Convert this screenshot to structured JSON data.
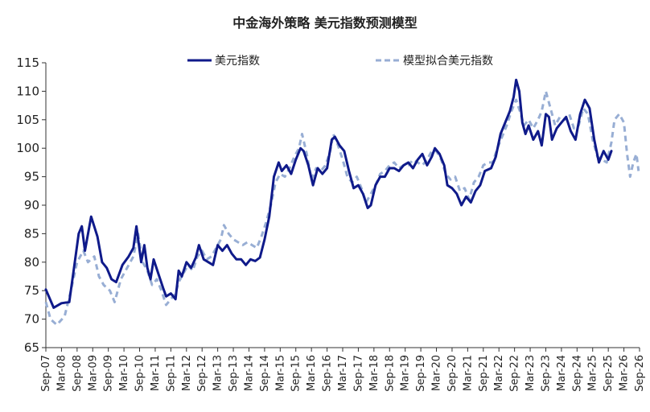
{
  "chart_data": {
    "type": "line",
    "title": "中金海外策略 美元指数预测模型",
    "xlabel": "",
    "ylabel": "",
    "ylim": [
      65,
      115
    ],
    "yticks": [
      65,
      70,
      75,
      80,
      85,
      90,
      95,
      100,
      105,
      110,
      115
    ],
    "legend_position": "top-center",
    "x_ticks": [
      "Sep-07",
      "Mar-08",
      "Sep-08",
      "Mar-09",
      "Sep-09",
      "Mar-10",
      "Sep-10",
      "Mar-11",
      "Sep-11",
      "Mar-12",
      "Sep-12",
      "Mar-13",
      "Sep-13",
      "Mar-14",
      "Sep-14",
      "Mar-15",
      "Sep-15",
      "Mar-16",
      "Sep-16",
      "Mar-17",
      "Sep-17",
      "Mar-18",
      "Sep-18",
      "Mar-19",
      "Sep-19",
      "Mar-20",
      "Sep-20",
      "Mar-21",
      "Sep-21",
      "Mar-22",
      "Sep-22",
      "Mar-23",
      "Sep-23",
      "Mar-24",
      "Sep-24",
      "Mar-25",
      "Sep-25",
      "Mar-26",
      "Sep-26"
    ],
    "series": [
      {
        "name": "美元指数",
        "color": "#0f1a8a",
        "style": "solid",
        "points": [
          [
            2007.75,
            75.2
          ],
          [
            2008.0,
            72.0
          ],
          [
            2008.25,
            72.8
          ],
          [
            2008.5,
            73.0
          ],
          [
            2008.65,
            79.0
          ],
          [
            2008.8,
            85.0
          ],
          [
            2008.9,
            86.3
          ],
          [
            2009.0,
            82.0
          ],
          [
            2009.2,
            88.0
          ],
          [
            2009.4,
            84.5
          ],
          [
            2009.55,
            80.0
          ],
          [
            2009.7,
            79.0
          ],
          [
            2009.85,
            77.0
          ],
          [
            2010.0,
            76.5
          ],
          [
            2010.2,
            79.5
          ],
          [
            2010.4,
            81.0
          ],
          [
            2010.55,
            82.5
          ],
          [
            2010.65,
            86.3
          ],
          [
            2010.8,
            80.0
          ],
          [
            2010.9,
            83.0
          ],
          [
            2011.0,
            79.0
          ],
          [
            2011.1,
            77.0
          ],
          [
            2011.2,
            80.5
          ],
          [
            2011.35,
            78.0
          ],
          [
            2011.5,
            75.5
          ],
          [
            2011.6,
            74.0
          ],
          [
            2011.75,
            74.5
          ],
          [
            2011.9,
            73.5
          ],
          [
            2012.0,
            78.5
          ],
          [
            2012.1,
            77.5
          ],
          [
            2012.25,
            80.0
          ],
          [
            2012.4,
            79.0
          ],
          [
            2012.55,
            80.8
          ],
          [
            2012.65,
            83.0
          ],
          [
            2012.8,
            80.5
          ],
          [
            2012.95,
            80.0
          ],
          [
            2013.1,
            79.5
          ],
          [
            2013.25,
            83.0
          ],
          [
            2013.4,
            82.0
          ],
          [
            2013.55,
            83.0
          ],
          [
            2013.7,
            81.5
          ],
          [
            2013.85,
            80.5
          ],
          [
            2014.0,
            80.5
          ],
          [
            2014.15,
            79.5
          ],
          [
            2014.3,
            80.5
          ],
          [
            2014.45,
            80.2
          ],
          [
            2014.6,
            80.8
          ],
          [
            2014.75,
            84.0
          ],
          [
            2014.9,
            88.0
          ],
          [
            2015.05,
            95.0
          ],
          [
            2015.2,
            97.5
          ],
          [
            2015.3,
            96.0
          ],
          [
            2015.45,
            97.0
          ],
          [
            2015.6,
            95.5
          ],
          [
            2015.75,
            98.0
          ],
          [
            2015.9,
            100.0
          ],
          [
            2016.0,
            99.5
          ],
          [
            2016.15,
            97.0
          ],
          [
            2016.3,
            93.5
          ],
          [
            2016.45,
            96.5
          ],
          [
            2016.6,
            95.5
          ],
          [
            2016.75,
            96.5
          ],
          [
            2016.9,
            101.5
          ],
          [
            2017.0,
            102.0
          ],
          [
            2017.15,
            100.5
          ],
          [
            2017.3,
            99.5
          ],
          [
            2017.45,
            96.0
          ],
          [
            2017.6,
            93.0
          ],
          [
            2017.75,
            93.5
          ],
          [
            2017.9,
            92.0
          ],
          [
            2018.05,
            89.5
          ],
          [
            2018.15,
            90.0
          ],
          [
            2018.3,
            93.5
          ],
          [
            2018.45,
            95.0
          ],
          [
            2018.6,
            95.0
          ],
          [
            2018.75,
            96.5
          ],
          [
            2018.9,
            96.5
          ],
          [
            2019.05,
            96.0
          ],
          [
            2019.2,
            97.0
          ],
          [
            2019.35,
            97.5
          ],
          [
            2019.5,
            96.5
          ],
          [
            2019.65,
            98.0
          ],
          [
            2019.8,
            99.0
          ],
          [
            2019.95,
            97.0
          ],
          [
            2020.1,
            98.5
          ],
          [
            2020.2,
            100.0
          ],
          [
            2020.35,
            99.0
          ],
          [
            2020.5,
            97.0
          ],
          [
            2020.6,
            93.5
          ],
          [
            2020.75,
            93.0
          ],
          [
            2020.9,
            92.0
          ],
          [
            2021.05,
            90.0
          ],
          [
            2021.2,
            91.5
          ],
          [
            2021.35,
            90.5
          ],
          [
            2021.5,
            92.5
          ],
          [
            2021.65,
            93.5
          ],
          [
            2021.8,
            96.0
          ],
          [
            2022.0,
            96.5
          ],
          [
            2022.15,
            98.5
          ],
          [
            2022.3,
            102.5
          ],
          [
            2022.45,
            104.5
          ],
          [
            2022.6,
            106.5
          ],
          [
            2022.72,
            109.0
          ],
          [
            2022.8,
            112.0
          ],
          [
            2022.9,
            110.0
          ],
          [
            2023.0,
            104.5
          ],
          [
            2023.1,
            102.5
          ],
          [
            2023.2,
            104.0
          ],
          [
            2023.35,
            101.5
          ],
          [
            2023.5,
            103.0
          ],
          [
            2023.62,
            100.5
          ],
          [
            2023.75,
            106.0
          ],
          [
            2023.85,
            105.5
          ],
          [
            2023.95,
            101.5
          ],
          [
            2024.1,
            103.5
          ],
          [
            2024.25,
            104.5
          ],
          [
            2024.4,
            105.5
          ],
          [
            2024.55,
            103.0
          ],
          [
            2024.7,
            101.5
          ],
          [
            2024.85,
            106.0
          ],
          [
            2025.0,
            108.5
          ],
          [
            2025.15,
            107.0
          ],
          [
            2025.3,
            101.5
          ],
          [
            2025.45,
            97.5
          ],
          [
            2025.6,
            99.5
          ],
          [
            2025.75,
            98.0
          ],
          [
            2025.85,
            99.5
          ]
        ]
      },
      {
        "name": "模型拟合美元指数",
        "color": "#98aed4",
        "style": "dashed",
        "points": [
          [
            2007.75,
            73.0
          ],
          [
            2007.9,
            70.0
          ],
          [
            2008.1,
            69.0
          ],
          [
            2008.35,
            70.5
          ],
          [
            2008.55,
            75.0
          ],
          [
            2008.75,
            80.0
          ],
          [
            2008.95,
            82.0
          ],
          [
            2009.1,
            80.0
          ],
          [
            2009.3,
            81.0
          ],
          [
            2009.45,
            77.5
          ],
          [
            2009.6,
            76.0
          ],
          [
            2009.8,
            75.0
          ],
          [
            2009.95,
            73.0
          ],
          [
            2010.15,
            77.0
          ],
          [
            2010.35,
            79.0
          ],
          [
            2010.55,
            81.0
          ],
          [
            2010.7,
            85.0
          ],
          [
            2010.85,
            80.0
          ],
          [
            2011.0,
            78.5
          ],
          [
            2011.15,
            76.0
          ],
          [
            2011.3,
            77.0
          ],
          [
            2011.45,
            75.0
          ],
          [
            2011.6,
            72.5
          ],
          [
            2011.75,
            73.5
          ],
          [
            2011.9,
            74.5
          ],
          [
            2012.0,
            76.5
          ],
          [
            2012.15,
            78.0
          ],
          [
            2012.3,
            79.5
          ],
          [
            2012.45,
            78.5
          ],
          [
            2012.6,
            81.0
          ],
          [
            2012.75,
            82.0
          ],
          [
            2012.9,
            80.5
          ],
          [
            2013.05,
            81.0
          ],
          [
            2013.2,
            82.5
          ],
          [
            2013.35,
            84.0
          ],
          [
            2013.45,
            86.5
          ],
          [
            2013.6,
            85.0
          ],
          [
            2013.75,
            84.0
          ],
          [
            2013.9,
            83.5
          ],
          [
            2014.05,
            83.0
          ],
          [
            2014.2,
            83.5
          ],
          [
            2014.35,
            83.0
          ],
          [
            2014.5,
            82.5
          ],
          [
            2014.65,
            84.5
          ],
          [
            2014.8,
            87.0
          ],
          [
            2014.95,
            90.0
          ],
          [
            2015.1,
            94.0
          ],
          [
            2015.25,
            95.5
          ],
          [
            2015.4,
            95.0
          ],
          [
            2015.55,
            96.5
          ],
          [
            2015.7,
            98.5
          ],
          [
            2015.85,
            100.0
          ],
          [
            2015.95,
            102.5
          ],
          [
            2016.1,
            99.0
          ],
          [
            2016.25,
            94.5
          ],
          [
            2016.4,
            96.5
          ],
          [
            2016.55,
            96.0
          ],
          [
            2016.7,
            97.0
          ],
          [
            2016.85,
            99.5
          ],
          [
            2016.95,
            102.5
          ],
          [
            2017.1,
            100.5
          ],
          [
            2017.25,
            98.0
          ],
          [
            2017.4,
            95.0
          ],
          [
            2017.55,
            94.0
          ],
          [
            2017.7,
            95.0
          ],
          [
            2017.85,
            93.0
          ],
          [
            2018.0,
            90.5
          ],
          [
            2018.15,
            92.0
          ],
          [
            2018.3,
            93.5
          ],
          [
            2018.45,
            95.5
          ],
          [
            2018.6,
            96.0
          ],
          [
            2018.75,
            97.0
          ],
          [
            2018.9,
            97.5
          ],
          [
            2019.05,
            96.5
          ],
          [
            2019.2,
            97.0
          ],
          [
            2019.35,
            97.0
          ],
          [
            2019.5,
            98.0
          ],
          [
            2019.65,
            97.5
          ],
          [
            2019.8,
            97.0
          ],
          [
            2019.95,
            98.0
          ],
          [
            2020.1,
            99.5
          ],
          [
            2020.25,
            99.5
          ],
          [
            2020.4,
            98.0
          ],
          [
            2020.55,
            95.5
          ],
          [
            2020.7,
            94.5
          ],
          [
            2020.85,
            95.0
          ],
          [
            2021.0,
            92.5
          ],
          [
            2021.15,
            93.0
          ],
          [
            2021.3,
            91.0
          ],
          [
            2021.45,
            94.0
          ],
          [
            2021.6,
            95.0
          ],
          [
            2021.75,
            97.0
          ],
          [
            2021.9,
            97.5
          ],
          [
            2022.05,
            97.5
          ],
          [
            2022.2,
            100.0
          ],
          [
            2022.35,
            102.0
          ],
          [
            2022.5,
            104.0
          ],
          [
            2022.65,
            106.5
          ],
          [
            2022.8,
            108.5
          ],
          [
            2022.95,
            106.0
          ],
          [
            2023.05,
            104.0
          ],
          [
            2023.2,
            105.0
          ],
          [
            2023.35,
            103.5
          ],
          [
            2023.5,
            105.0
          ],
          [
            2023.62,
            106.5
          ],
          [
            2023.75,
            110.0
          ],
          [
            2023.9,
            107.0
          ],
          [
            2024.05,
            104.0
          ],
          [
            2024.2,
            105.5
          ],
          [
            2024.35,
            105.0
          ],
          [
            2024.5,
            106.0
          ],
          [
            2024.65,
            103.5
          ],
          [
            2024.8,
            104.0
          ],
          [
            2024.95,
            107.0
          ],
          [
            2025.1,
            106.0
          ],
          [
            2025.25,
            101.5
          ],
          [
            2025.4,
            98.5
          ],
          [
            2025.55,
            98.0
          ],
          [
            2025.7,
            97.5
          ],
          [
            2025.85,
            101.0
          ],
          [
            2025.95,
            105.0
          ],
          [
            2026.1,
            106.0
          ],
          [
            2026.25,
            104.5
          ],
          [
            2026.35,
            99.0
          ],
          [
            2026.45,
            95.0
          ],
          [
            2026.55,
            97.5
          ],
          [
            2026.65,
            99.0
          ],
          [
            2026.72,
            96.0
          ]
        ]
      }
    ]
  }
}
